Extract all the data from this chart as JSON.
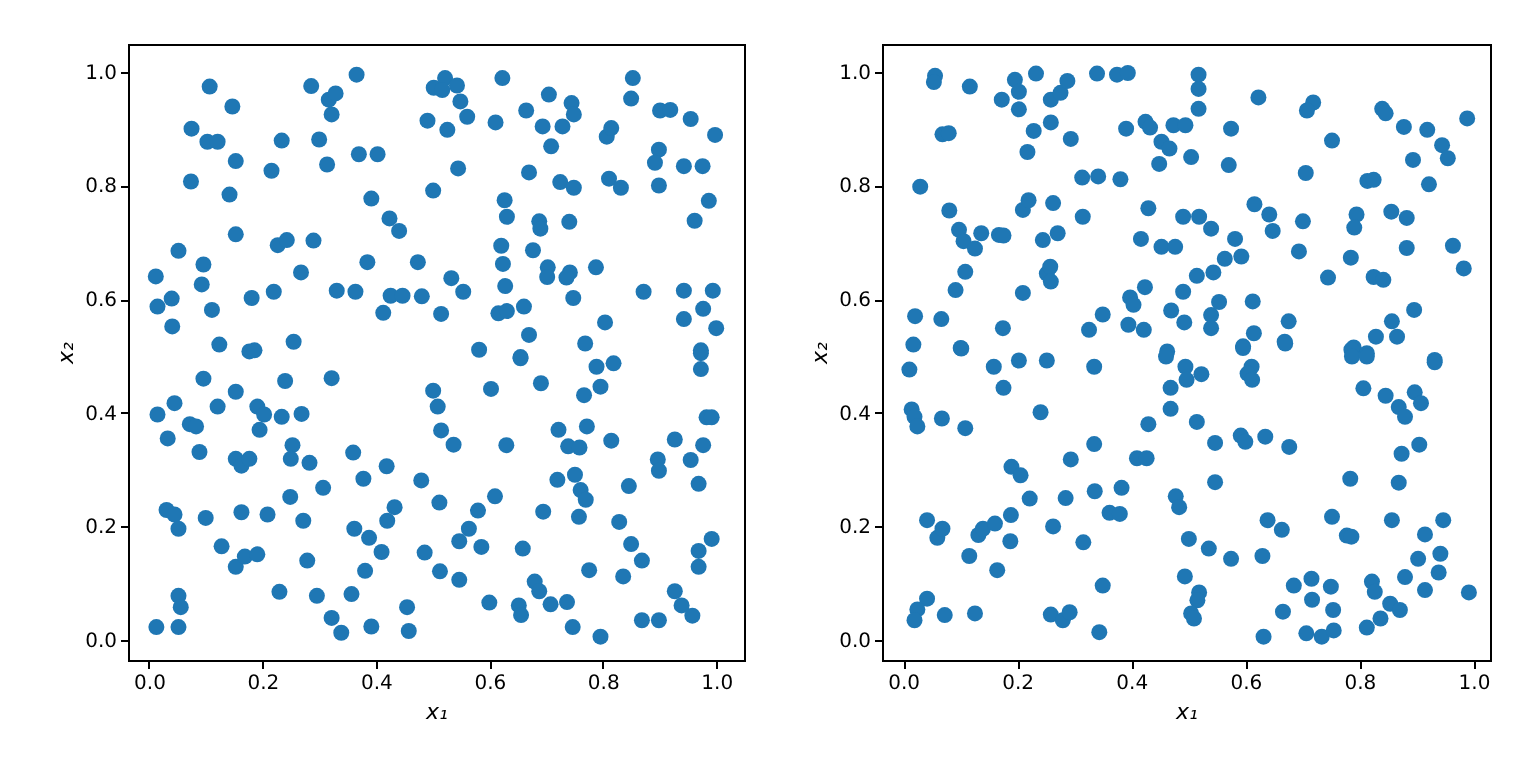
{
  "chart_data": [
    {
      "type": "scatter",
      "xlabel": "x₁",
      "ylabel": "x₂",
      "marker": "circle",
      "grid": false,
      "xlim": [
        -0.037,
        1.049
      ],
      "ylim": [
        -0.035,
        1.049
      ],
      "xticks": [
        {
          "value": 0,
          "label": "0.0"
        },
        {
          "value": 0.2,
          "label": "0.2"
        },
        {
          "value": 0.4,
          "label": "0.4"
        },
        {
          "value": 0.6,
          "label": "0.6"
        },
        {
          "value": 0.8,
          "label": "0.8"
        },
        {
          "value": 1,
          "label": "1.0"
        }
      ],
      "yticks": [
        {
          "value": 0,
          "label": "0.0"
        },
        {
          "value": 0.2,
          "label": "0.2"
        },
        {
          "value": 0.4,
          "label": "0.4"
        },
        {
          "value": 0.6,
          "label": "0.6"
        },
        {
          "value": 0.8,
          "label": "0.8"
        },
        {
          "value": 1,
          "label": "1.0"
        }
      ],
      "series": [
        {
          "color": "#1f77b4",
          "x": [
            0.107,
            0.147,
            0.075,
            0.103,
            0.121,
            0.153,
            0.074,
            0.142,
            0.153,
            0.052,
            0.096,
            0.012,
            0.093,
            0.04,
            0.015,
            0.041,
            0.111,
            0.124,
            0.181,
            0.177,
            0.186,
            0.22,
            0.216,
            0.234,
            0.227,
            0.243,
            0.268,
            0.255,
            0.29,
            0.286,
            0.317,
            0.329,
            0.322,
            0.3,
            0.314,
            0.366,
            0.37,
            0.403,
            0.392,
            0.424,
            0.441,
            0.385,
            0.331,
            0.364,
            0.426,
            0.447,
            0.481,
            0.413,
            0.474,
            0.501,
            0.491,
            0.502,
            0.522,
            0.543,
            0.517,
            0.549,
            0.561,
            0.526,
            0.545,
            0.533,
            0.554,
            0.515,
            0.582,
            0.623,
            0.611,
            0.665,
            0.705,
            0.694,
            0.729,
            0.745,
            0.749,
            0.709,
            0.67,
            0.627,
            0.631,
            0.688,
            0.69,
            0.621,
            0.624,
            0.677,
            0.628,
            0.616,
            0.631,
            0.661,
            0.67,
            0.655,
            0.703,
            0.702,
            0.742,
            0.736,
            0.748,
            0.741,
            0.725,
            0.749,
            0.788,
            0.769,
            0.804,
            0.807,
            0.815,
            0.811,
            0.832,
            0.853,
            0.85,
            0.901,
            0.919,
            0.899,
            0.892,
            0.899,
            0.955,
            0.998,
            0.943,
            0.976,
            0.987,
            0.962,
            0.872,
            0.943,
            0.994,
            0.977,
            0.943,
            1.0,
            0.973,
            0.096,
            0.121,
            0.153,
            0.015,
            0.045,
            0.033,
            0.072,
            0.083,
            0.089,
            0.191,
            0.203,
            0.195,
            0.234,
            0.269,
            0.24,
            0.322,
            0.253,
            0.25,
            0.283,
            0.153,
            0.163,
            0.177,
            0.307,
            0.249,
            0.031,
            0.045,
            0.052,
            0.1,
            0.163,
            0.209,
            0.272,
            0.128,
            0.153,
            0.169,
            0.191,
            0.279,
            0.23,
            0.296,
            0.36,
            0.378,
            0.419,
            0.48,
            0.42,
            0.433,
            0.362,
            0.388,
            0.41,
            0.381,
            0.357,
            0.322,
            0.339,
            0.392,
            0.455,
            0.458,
            0.501,
            0.509,
            0.515,
            0.537,
            0.512,
            0.486,
            0.513,
            0.547,
            0.547,
            0.564,
            0.58,
            0.586,
            0.61,
            0.63,
            0.603,
            0.6,
            0.652,
            0.656,
            0.655,
            0.691,
            0.659,
            0.695,
            0.68,
            0.688,
            0.708,
            0.737,
            0.747,
            0.796,
            0.722,
            0.739,
            0.759,
            0.772,
            0.815,
            0.72,
            0.751,
            0.761,
            0.77,
            0.758,
            0.767,
            0.796,
            0.789,
            0.819,
            0.776,
            0.829,
            0.85,
            0.869,
            0.836,
            0.846,
            0.897,
            0.899,
            0.927,
            0.955,
            0.977,
            0.969,
            0.983,
            0.992,
            0.973,
            0.973,
            0.992,
            0.969,
            0.969,
            0.927,
            0.939,
            0.958,
            0.869,
            0.899,
            0.052,
            0.056,
            0.052,
            0.013
          ],
          "values": [
            0.974,
            0.939,
            0.9,
            0.877,
            0.877,
            0.843,
            0.807,
            0.784,
            0.714,
            0.685,
            0.661,
            0.64,
            0.626,
            0.601,
            0.587,
            0.552,
            0.581,
            0.52,
            0.602,
            0.508,
            0.51,
            0.613,
            0.826,
            0.879,
            0.695,
            0.704,
            0.647,
            0.525,
            0.703,
            0.975,
            0.951,
            0.962,
            0.925,
            0.881,
            0.837,
            0.995,
            0.855,
            0.855,
            0.777,
            0.742,
            0.72,
            0.665,
            0.615,
            0.613,
            0.606,
            0.606,
            0.605,
            0.576,
            0.665,
            0.791,
            0.914,
            0.972,
            0.989,
            0.976,
            0.968,
            0.948,
            0.921,
            0.898,
            0.83,
            0.637,
            0.613,
            0.574,
            0.511,
            0.989,
            0.911,
            0.932,
            0.96,
            0.904,
            0.904,
            0.945,
            0.925,
            0.869,
            0.823,
            0.774,
            0.745,
            0.737,
            0.724,
            0.694,
            0.662,
            0.686,
            0.623,
            0.575,
            0.579,
            0.587,
            0.537,
            0.498,
            0.656,
            0.639,
            0.647,
            0.638,
            0.602,
            0.736,
            0.806,
            0.796,
            0.656,
            0.522,
            0.559,
            0.886,
            0.901,
            0.812,
            0.796,
            0.989,
            0.953,
            0.932,
            0.933,
            0.863,
            0.84,
            0.8,
            0.917,
            0.889,
            0.834,
            0.834,
            0.773,
            0.738,
            0.613,
            0.615,
            0.615,
            0.583,
            0.565,
            0.549,
            0.51,
            0.46,
            0.411,
            0.437,
            0.397,
            0.417,
            0.355,
            0.38,
            0.376,
            0.331,
            0.411,
            0.397,
            0.37,
            0.393,
            0.398,
            0.456,
            0.461,
            0.343,
            0.319,
            0.312,
            0.319,
            0.307,
            0.319,
            0.268,
            0.252,
            0.229,
            0.221,
            0.196,
            0.215,
            0.225,
            0.221,
            0.21,
            0.165,
            0.129,
            0.147,
            0.151,
            0.14,
            0.085,
            0.078,
            0.33,
            0.284,
            0.306,
            0.281,
            0.21,
            0.234,
            0.196,
            0.18,
            0.155,
            0.122,
            0.081,
            0.039,
            0.013,
            0.024,
            0.058,
            0.016,
            0.439,
            0.411,
            0.369,
            0.344,
            0.242,
            0.154,
            0.121,
            0.106,
            0.174,
            0.196,
            0.228,
            0.164,
            0.253,
            0.343,
            0.442,
            0.066,
            0.061,
            0.044,
            0.496,
            0.452,
            0.161,
            0.226,
            0.103,
            0.086,
            0.063,
            0.067,
            0.023,
            0.006,
            0.37,
            0.341,
            0.339,
            0.376,
            0.351,
            0.282,
            0.291,
            0.264,
            0.247,
            0.217,
            0.431,
            0.446,
            0.481,
            0.487,
            0.123,
            0.208,
            0.169,
            0.14,
            0.112,
            0.271,
            0.318,
            0.298,
            0.353,
            0.317,
            0.343,
            0.275,
            0.392,
            0.392,
            0.505,
            0.477,
            0.178,
            0.157,
            0.129,
            0.086,
            0.061,
            0.043,
            0.035,
            0.035,
            0.078,
            0.058,
            0.023,
            0.023
          ]
        }
      ]
    },
    {
      "type": "scatter",
      "xlabel": "x₁",
      "ylabel": "x₂",
      "marker": "circle",
      "grid": false,
      "xlim": [
        -0.037,
        1.029
      ],
      "ylim": [
        -0.035,
        1.049
      ],
      "xticks": [
        {
          "value": 0,
          "label": "0.0"
        },
        {
          "value": 0.2,
          "label": "0.2"
        },
        {
          "value": 0.4,
          "label": "0.4"
        },
        {
          "value": 0.6,
          "label": "0.6"
        },
        {
          "value": 0.8,
          "label": "0.8"
        },
        {
          "value": 1,
          "label": "1.0"
        }
      ],
      "yticks": [
        {
          "value": 0,
          "label": "0.0"
        },
        {
          "value": 0.2,
          "label": "0.2"
        },
        {
          "value": 0.4,
          "label": "0.4"
        },
        {
          "value": 0.6,
          "label": "0.6"
        },
        {
          "value": 0.8,
          "label": "0.8"
        },
        {
          "value": 1,
          "label": "1.0"
        }
      ],
      "series": [
        {
          "color": "#1f77b4",
          "x": [
            0.056,
            0.054,
            0.117,
            0.03,
            0.069,
            0.08,
            0.081,
            0.098,
            0.106,
            0.126,
            0.137,
            0.109,
            0.092,
            0.021,
            0.067,
            0.018,
            0.101,
            0.173,
            0.196,
            0.203,
            0.203,
            0.233,
            0.229,
            0.218,
            0.168,
            0.176,
            0.21,
            0.22,
            0.263,
            0.245,
            0.271,
            0.252,
            0.258,
            0.259,
            0.21,
            0.175,
            0.259,
            0.276,
            0.288,
            0.259,
            0.294,
            0.314,
            0.342,
            0.381,
            0.315,
            0.34,
            0.375,
            0.394,
            0.391,
            0.425,
            0.433,
            0.453,
            0.467,
            0.474,
            0.495,
            0.449,
            0.505,
            0.518,
            0.518,
            0.518,
            0.575,
            0.571,
            0.623,
            0.43,
            0.417,
            0.453,
            0.477,
            0.491,
            0.519,
            0.54,
            0.582,
            0.564,
            0.593,
            0.515,
            0.544,
            0.491,
            0.398,
            0.404,
            0.424,
            0.35,
            0.326,
            0.395,
            0.422,
            0.47,
            0.493,
            0.54,
            0.54,
            0.554,
            0.613,
            0.615,
            0.596,
            0.463,
            0.616,
            0.642,
            0.648,
            0.701,
            0.706,
            0.694,
            0.719,
            0.708,
            0.752,
            0.745,
            0.785,
            0.795,
            0.791,
            0.814,
            0.825,
            0.84,
            0.846,
            0.878,
            0.894,
            0.919,
            0.945,
            0.955,
            0.922,
            0.989,
            0.856,
            0.883,
            0.883,
            0.964,
            0.983,
            0.825,
            0.842,
            0.896,
            0.857,
            0.866,
            0.829,
            0.676,
            0.669,
            0.79,
            0.813,
            0.932,
            0.011,
            0.015,
            0.02,
            0.025,
            0.068,
            0.109,
            0.102,
            0.159,
            0.176,
            0.203,
            0.252,
            0.241,
            0.335,
            0.19,
            0.206,
            0.222,
            0.189,
            0.188,
            0.042,
            0.06,
            0.069,
            0.132,
            0.14,
            0.161,
            0.116,
            0.165,
            0.042,
            0.025,
            0.02,
            0.073,
            0.126,
            0.294,
            0.285,
            0.263,
            0.316,
            0.335,
            0.336,
            0.362,
            0.38,
            0.383,
            0.35,
            0.259,
            0.28,
            0.292,
            0.344,
            0.41,
            0.427,
            0.43,
            0.469,
            0.469,
            0.461,
            0.495,
            0.497,
            0.523,
            0.515,
            0.547,
            0.478,
            0.484,
            0.547,
            0.501,
            0.536,
            0.575,
            0.494,
            0.519,
            0.516,
            0.505,
            0.51,
            0.592,
            0.6,
            0.635,
            0.596,
            0.611,
            0.604,
            0.612,
            0.677,
            0.639,
            0.664,
            0.63,
            0.67,
            0.685,
            0.666,
            0.632,
            0.716,
            0.717,
            0.707,
            0.734,
            0.755,
            0.75,
            0.754,
            0.752,
            0.784,
            0.778,
            0.786,
            0.786,
            0.787,
            0.813,
            0.807,
            0.846,
            0.869,
            0.88,
            0.897,
            0.908,
            0.932,
            0.905,
            0.874,
            0.869,
            0.857,
            0.915,
            0.947,
            0.903,
            0.942,
            0.939,
            0.88,
            0.915,
            0.822,
            0.827,
            0.854,
            0.871,
            0.837,
            0.813,
            0.992
          ],
          "values": [
            0.993,
            0.982,
            0.974,
            0.798,
            0.89,
            0.892,
            0.756,
            0.722,
            0.702,
            0.689,
            0.716,
            0.648,
            0.616,
            0.57,
            0.565,
            0.52,
            0.514,
            0.951,
            0.986,
            0.965,
            0.934,
            0.997,
            0.896,
            0.859,
            0.713,
            0.712,
            0.757,
            0.774,
            0.769,
            0.704,
            0.716,
            0.645,
            0.657,
            0.631,
            0.611,
            0.549,
            0.951,
            0.963,
            0.984,
            0.911,
            0.882,
            0.814,
            0.816,
            0.811,
            0.745,
            0.997,
            0.995,
            0.998,
            0.9,
            0.912,
            0.902,
            0.877,
            0.865,
            0.906,
            0.906,
            0.838,
            0.85,
            0.995,
            0.97,
            0.935,
            0.9,
            0.836,
            0.955,
            0.76,
            0.706,
            0.692,
            0.692,
            0.745,
            0.745,
            0.724,
            0.706,
            0.671,
            0.675,
            0.641,
            0.647,
            0.613,
            0.603,
            0.59,
            0.621,
            0.573,
            0.546,
            0.555,
            0.546,
            0.58,
            0.559,
            0.572,
            0.549,
            0.595,
            0.596,
            0.54,
            0.517,
            0.508,
            0.767,
            0.749,
            0.72,
            0.737,
            0.822,
            0.684,
            0.946,
            0.932,
            0.879,
            0.638,
            0.673,
            0.749,
            0.726,
            0.808,
            0.81,
            0.935,
            0.927,
            0.903,
            0.845,
            0.898,
            0.871,
            0.848,
            0.802,
            0.918,
            0.754,
            0.743,
            0.69,
            0.694,
            0.654,
            0.639,
            0.634,
            0.581,
            0.561,
            0.534,
            0.534,
            0.561,
            0.525,
            0.515,
            0.505,
            0.493,
            0.476,
            0.406,
            0.393,
            0.376,
            0.39,
            0.373,
            0.513,
            0.481,
            0.444,
            0.492,
            0.492,
            0.401,
            0.481,
            0.305,
            0.29,
            0.249,
            0.22,
            0.174,
            0.211,
            0.18,
            0.196,
            0.185,
            0.196,
            0.205,
            0.148,
            0.123,
            0.073,
            0.054,
            0.035,
            0.044,
            0.047,
            0.318,
            0.25,
            0.2,
            0.172,
            0.345,
            0.262,
            0.224,
            0.222,
            0.268,
            0.096,
            0.045,
            0.035,
            0.049,
            0.014,
            0.32,
            0.32,
            0.38,
            0.407,
            0.444,
            0.499,
            0.481,
            0.458,
            0.468,
            0.384,
            0.347,
            0.253,
            0.234,
            0.278,
            0.178,
            0.161,
            0.143,
            0.112,
            0.084,
            0.07,
            0.047,
            0.038,
            0.36,
            0.349,
            0.358,
            0.514,
            0.481,
            0.469,
            0.458,
            0.34,
            0.211,
            0.194,
            0.148,
            0.522,
            0.096,
            0.05,
            0.006,
            0.108,
            0.071,
            0.012,
            0.006,
            0.017,
            0.094,
            0.053,
            0.217,
            0.284,
            0.184,
            0.182,
            0.511,
            0.499,
            0.499,
            0.443,
            0.43,
            0.41,
            0.393,
            0.436,
            0.417,
            0.489,
            0.344,
            0.328,
            0.277,
            0.211,
            0.186,
            0.211,
            0.143,
            0.152,
            0.119,
            0.111,
            0.088,
            0.103,
            0.085,
            0.064,
            0.053,
            0.038,
            0.022,
            0.084
          ]
        }
      ]
    }
  ]
}
